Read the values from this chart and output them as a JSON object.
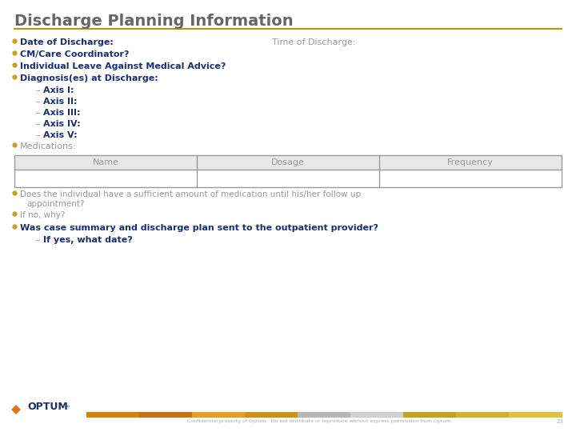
{
  "title": "Discharge Planning Information",
  "title_color": "#666666",
  "title_fontsize": 14,
  "separator_color": "#b8960c",
  "bg_color": "#ffffff",
  "bullet_color": "#c8a020",
  "bullet_text_color": "#1a2f6e",
  "sub_text_color": "#1a2f6e",
  "gray_text_color": "#999999",
  "dark_gray_text": "#666666",
  "bold_bullet_items": [
    "Date of Discharge:",
    "CM/Care Coordinator?",
    "Individual Leave Against Medical Advice?",
    "Diagnosis(es) at Discharge:"
  ],
  "time_label": "Time of Discharge:",
  "sub_items": [
    "Axis I:",
    "Axis II:",
    "Axis III:",
    "Axis IV:",
    "Axis V:"
  ],
  "meds_label": "Medications:",
  "table_headers": [
    "Name",
    "Dosage",
    "Frequency"
  ],
  "table_header_bg": "#e8e8e8",
  "table_row_bg": "#ffffff",
  "table_border_color": "#999999",
  "bottom_line1": "Does the individual have a sufficient amount of medication until his/her follow up",
  "bottom_line1b": "appointment?",
  "bottom_line2": "If no, why?",
  "bottom_bullet_bold": "Was case summary and discharge plan sent to the outpatient provider?",
  "bottom_sub_bold": "If yes, what date?",
  "footer_text": "Confidential property of Optum.  Do not distribute or reproduce without express permission from Optum.",
  "page_number": "23",
  "optum_orange": "#e07818",
  "optum_text_color": "#1a2f6e",
  "footer_bar_segs": [
    "#d4820a",
    "#c87010",
    "#e8a020",
    "#d09010",
    "#b8b8b8",
    "#d0d0d0",
    "#c8a020",
    "#d4b030",
    "#e0c040"
  ]
}
